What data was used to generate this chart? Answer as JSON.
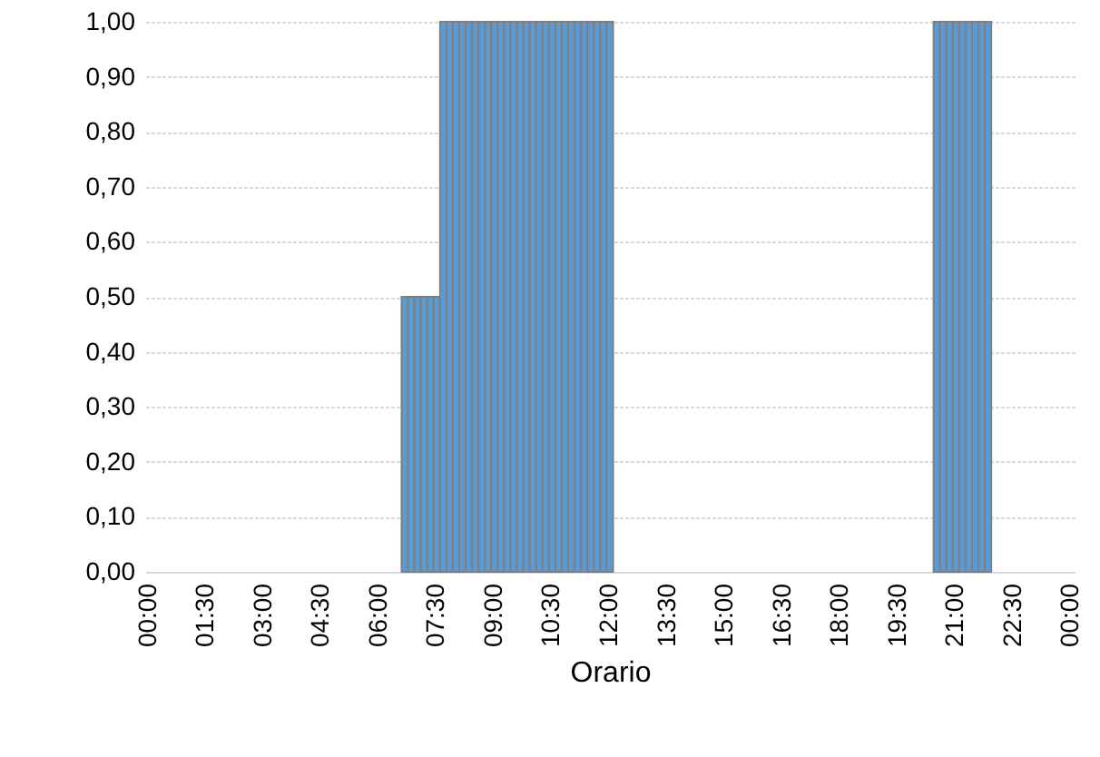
{
  "chart_data": {
    "type": "bar",
    "xlabel": "Orario",
    "categories": [
      "00:00",
      null,
      null,
      null,
      null,
      null,
      null,
      null,
      null,
      "01:30",
      null,
      null,
      null,
      null,
      null,
      null,
      null,
      null,
      "03:00",
      null,
      null,
      null,
      null,
      null,
      null,
      null,
      null,
      "04:30",
      null,
      null,
      null,
      null,
      null,
      null,
      null,
      null,
      "06:00",
      null,
      null,
      null,
      null,
      null,
      null,
      null,
      null,
      "07:30",
      null,
      null,
      null,
      null,
      null,
      null,
      null,
      null,
      "09:00",
      null,
      null,
      null,
      null,
      null,
      null,
      null,
      null,
      "10:30",
      null,
      null,
      null,
      null,
      null,
      null,
      null,
      null,
      "12:00",
      null,
      null,
      null,
      null,
      null,
      null,
      null,
      null,
      "13:30",
      null,
      null,
      null,
      null,
      null,
      null,
      null,
      null,
      "15:00",
      null,
      null,
      null,
      null,
      null,
      null,
      null,
      null,
      "16:30",
      null,
      null,
      null,
      null,
      null,
      null,
      null,
      null,
      "18:00",
      null,
      null,
      null,
      null,
      null,
      null,
      null,
      null,
      "19:30",
      null,
      null,
      null,
      null,
      null,
      null,
      null,
      null,
      "21:00",
      null,
      null,
      null,
      null,
      null,
      null,
      null,
      null,
      "22:30",
      null,
      null,
      null,
      null,
      null,
      null,
      null,
      null,
      "00:00"
    ],
    "values": [
      0,
      0,
      0,
      0,
      0,
      0,
      0,
      0,
      0,
      0,
      0,
      0,
      0,
      0,
      0,
      0,
      0,
      0,
      0,
      0,
      0,
      0,
      0,
      0,
      0,
      0,
      0,
      0,
      0,
      0,
      0,
      0,
      0,
      0,
      0,
      0,
      0,
      0,
      0,
      0,
      0.5,
      0.5,
      0.5,
      0.5,
      0.5,
      0.5,
      1,
      1,
      1,
      1,
      1,
      1,
      1,
      1,
      1,
      1,
      1,
      1,
      1,
      1,
      1,
      1,
      1,
      1,
      1,
      1,
      1,
      1,
      1,
      1,
      1,
      1,
      1,
      0,
      0,
      0,
      0,
      0,
      0,
      0,
      0,
      0,
      0,
      0,
      0,
      0,
      0,
      0,
      0,
      0,
      0,
      0,
      0,
      0,
      0,
      0,
      0,
      0,
      0,
      0,
      0,
      0,
      0,
      0,
      0,
      0,
      0,
      0,
      0,
      0,
      0,
      0,
      0,
      0,
      0,
      0,
      0,
      0,
      0,
      0,
      0,
      0,
      0,
      1,
      1,
      1,
      1,
      1,
      1,
      1,
      1,
      1,
      0,
      0,
      0,
      0,
      0,
      0,
      0,
      0,
      0,
      0,
      0,
      0,
      0
    ],
    "color": "#5b9bd5",
    "ylim": [
      0,
      1
    ],
    "yticks": [
      {
        "value": 0,
        "label": "0,00"
      },
      {
        "value": 0.1,
        "label": "0,10"
      },
      {
        "value": 0.2,
        "label": "0,20"
      },
      {
        "value": 0.3,
        "label": "0,30"
      },
      {
        "value": 0.4,
        "label": "0,40"
      },
      {
        "value": 0.5,
        "label": "0,50"
      },
      {
        "value": 0.6,
        "label": "0,60"
      },
      {
        "value": 0.7,
        "label": "0,70"
      },
      {
        "value": 0.8,
        "label": "0,80"
      },
      {
        "value": 0.9,
        "label": "0,90"
      },
      {
        "value": 1,
        "label": "1,00"
      }
    ],
    "grid": "y"
  }
}
